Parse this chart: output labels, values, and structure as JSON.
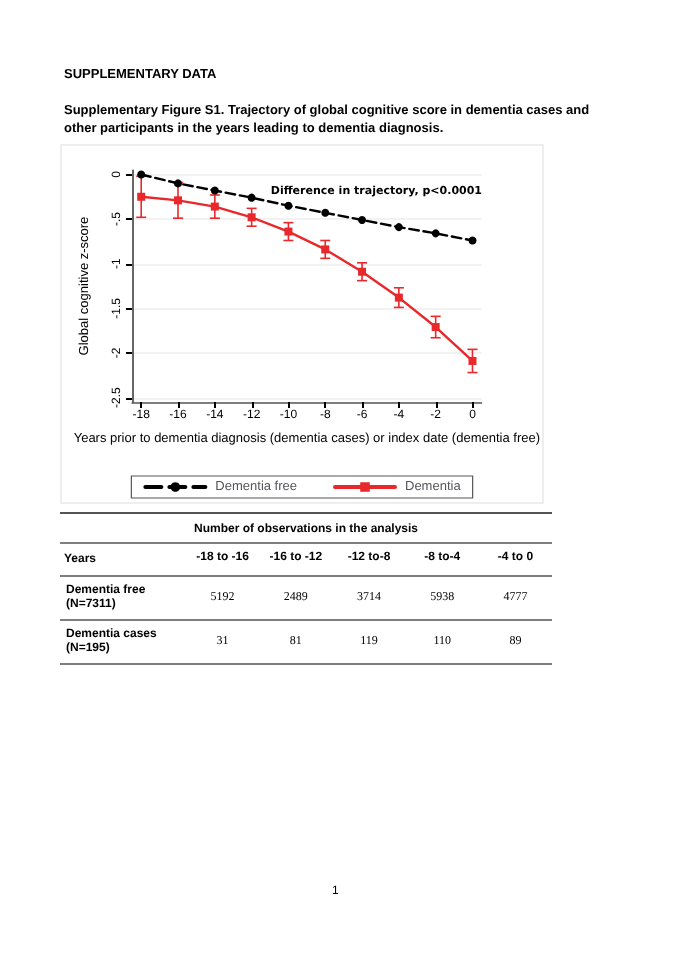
{
  "chart_data": [
    {
      "type": "line",
      "title": "Supplementary Figure S1. Trajectory of global cognitive score in dementia cases and other participants in the years leading to dementia diagnosis.",
      "annotations": [
        "SUPPLEMENTARY DATA",
        "Difference in trajectory, p<0.0001"
      ],
      "xlabel": "Years prior to dementia diagnosis (dementia cases) or index date (dementia free)",
      "ylabel": "Global cognitive z-score",
      "x": [
        -18,
        -16,
        -14,
        -12,
        -10,
        -8,
        -6,
        -4,
        -2,
        0
      ],
      "series": [
        {
          "name": "Dementia free",
          "color": "#000000",
          "line_style": "dashed",
          "marker": "circle",
          "values": [
            0,
            -0.1,
            -0.18,
            -0.26,
            -0.35,
            -0.43,
            -0.51,
            -0.59,
            -0.66,
            -0.74
          ]
        },
        {
          "name": "Dementia",
          "color": "#e8282b",
          "line_style": "solid",
          "marker": "square",
          "values": [
            -0.25,
            -0.29,
            -0.36,
            -0.48,
            -0.64,
            -0.84,
            -1.09,
            -1.38,
            -1.71,
            -2.09
          ],
          "errors": [
            0.23,
            0.2,
            0.13,
            0.1,
            0.1,
            0.1,
            0.1,
            0.11,
            0.12,
            0.13
          ]
        }
      ],
      "xlim": [
        -18.5,
        0.5
      ],
      "xticks": [
        -18,
        -16,
        -14,
        -12,
        -10,
        -8,
        -6,
        -4,
        -2,
        0
      ],
      "ylim": [
        -2.55,
        0.05
      ],
      "yticks": [
        {
          "value": -2.5,
          "label": "-2.5"
        },
        {
          "value": -2,
          "label": "-2"
        },
        {
          "value": -1.5,
          "label": "-1.5"
        },
        {
          "value": -1,
          "label": "-1"
        },
        {
          "value": -0.5,
          "label": "-.5"
        },
        {
          "value": 0,
          "label": "0"
        }
      ],
      "grid": "y",
      "legend": "bottom"
    },
    {
      "type": "heatmap",
      "data_labels": true,
      "title": "Number of observations in the analysis",
      "xlabel": "Years",
      "categories": [
        "-18 to -16",
        "-16 to -12",
        "-12 to-8",
        "-8 to-4",
        "-4 to 0"
      ],
      "y_categories": [
        "Dementia free (N=7311)",
        "Dementia cases (N=195)"
      ],
      "cells": [
        [
          5192,
          2489,
          3714,
          5938,
          4777
        ],
        [
          31,
          81,
          119,
          110,
          89
        ]
      ],
      "annotations": [
        "1"
      ]
    }
  ]
}
